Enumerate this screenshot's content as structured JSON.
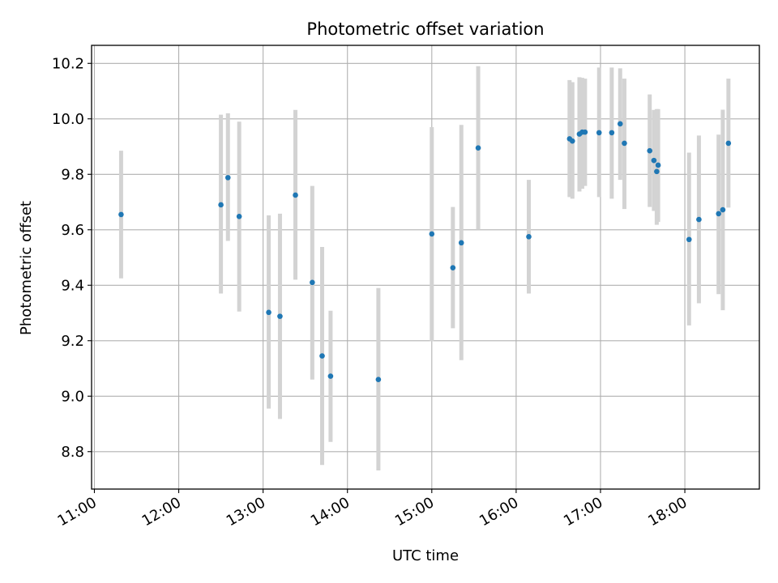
{
  "chart_data": {
    "type": "scatter",
    "title": "Photometric offset variation",
    "xlabel": "UTC time",
    "ylabel": "Photometric offset",
    "xlim": [
      "10:58",
      "18:53"
    ],
    "ylim": [
      8.665,
      10.265
    ],
    "x_ticks": [
      "11:00",
      "12:00",
      "13:00",
      "14:00",
      "15:00",
      "16:00",
      "17:00",
      "18:00"
    ],
    "y_ticks": [
      "8.8",
      "9.0",
      "9.2",
      "9.4",
      "9.6",
      "9.8",
      "10.0",
      "10.2"
    ],
    "grid": true,
    "colors": {
      "point": "#1f77b4",
      "errorbar": "#d3d3d3",
      "grid": "#b0b0b0"
    },
    "series": [
      {
        "points": [
          {
            "time": "11:19",
            "y": 9.655,
            "low": 9.425,
            "high": 9.885
          },
          {
            "time": "12:30",
            "y": 9.69,
            "low": 9.37,
            "high": 10.015
          },
          {
            "time": "12:35",
            "y": 9.788,
            "low": 9.56,
            "high": 10.02
          },
          {
            "time": "12:43",
            "y": 9.648,
            "low": 9.305,
            "high": 9.99
          },
          {
            "time": "13:04",
            "y": 9.302,
            "low": 8.955,
            "high": 9.652
          },
          {
            "time": "13:12",
            "y": 9.288,
            "low": 8.918,
            "high": 9.658
          },
          {
            "time": "13:23",
            "y": 9.725,
            "low": 9.42,
            "high": 10.032
          },
          {
            "time": "13:35",
            "y": 9.41,
            "low": 9.06,
            "high": 9.758
          },
          {
            "time": "13:42",
            "y": 9.145,
            "low": 8.752,
            "high": 9.538
          },
          {
            "time": "13:48",
            "y": 9.072,
            "low": 8.835,
            "high": 9.308
          },
          {
            "time": "14:22",
            "y": 9.06,
            "low": 8.732,
            "high": 9.39
          },
          {
            "time": "15:00",
            "y": 9.585,
            "low": 9.198,
            "high": 9.97
          },
          {
            "time": "15:15",
            "y": 9.463,
            "low": 9.245,
            "high": 9.682
          },
          {
            "time": "15:21",
            "y": 9.553,
            "low": 9.13,
            "high": 9.978
          },
          {
            "time": "15:33",
            "y": 9.895,
            "low": 9.6,
            "high": 10.19
          },
          {
            "time": "16:09",
            "y": 9.575,
            "low": 9.37,
            "high": 9.78
          },
          {
            "time": "16:38",
            "y": 9.928,
            "low": 9.718,
            "high": 10.14
          },
          {
            "time": "16:40",
            "y": 9.92,
            "low": 9.712,
            "high": 10.132
          },
          {
            "time": "16:45",
            "y": 9.945,
            "low": 9.738,
            "high": 10.15
          },
          {
            "time": "16:47",
            "y": 9.952,
            "low": 9.748,
            "high": 10.148
          },
          {
            "time": "16:49",
            "y": 9.952,
            "low": 9.758,
            "high": 10.145
          },
          {
            "time": "16:59",
            "y": 9.95,
            "low": 9.718,
            "high": 10.185
          },
          {
            "time": "17:08",
            "y": 9.95,
            "low": 9.712,
            "high": 10.185
          },
          {
            "time": "17:14",
            "y": 9.982,
            "low": 9.78,
            "high": 10.182
          },
          {
            "time": "17:17",
            "y": 9.912,
            "low": 9.675,
            "high": 10.145
          },
          {
            "time": "17:35",
            "y": 9.885,
            "low": 9.682,
            "high": 10.088
          },
          {
            "time": "17:38",
            "y": 9.85,
            "low": 9.668,
            "high": 10.032
          },
          {
            "time": "17:40",
            "y": 9.81,
            "low": 9.618,
            "high": 10.035
          },
          {
            "time": "17:41",
            "y": 9.833,
            "low": 9.628,
            "high": 10.035
          },
          {
            "time": "18:03",
            "y": 9.565,
            "low": 9.255,
            "high": 9.878
          },
          {
            "time": "18:10",
            "y": 9.637,
            "low": 9.335,
            "high": 9.94
          },
          {
            "time": "18:24",
            "y": 9.658,
            "low": 9.368,
            "high": 9.943
          },
          {
            "time": "18:27",
            "y": 9.672,
            "low": 9.31,
            "high": 10.033
          },
          {
            "time": "18:31",
            "y": 9.912,
            "low": 9.68,
            "high": 10.145
          }
        ]
      }
    ]
  }
}
